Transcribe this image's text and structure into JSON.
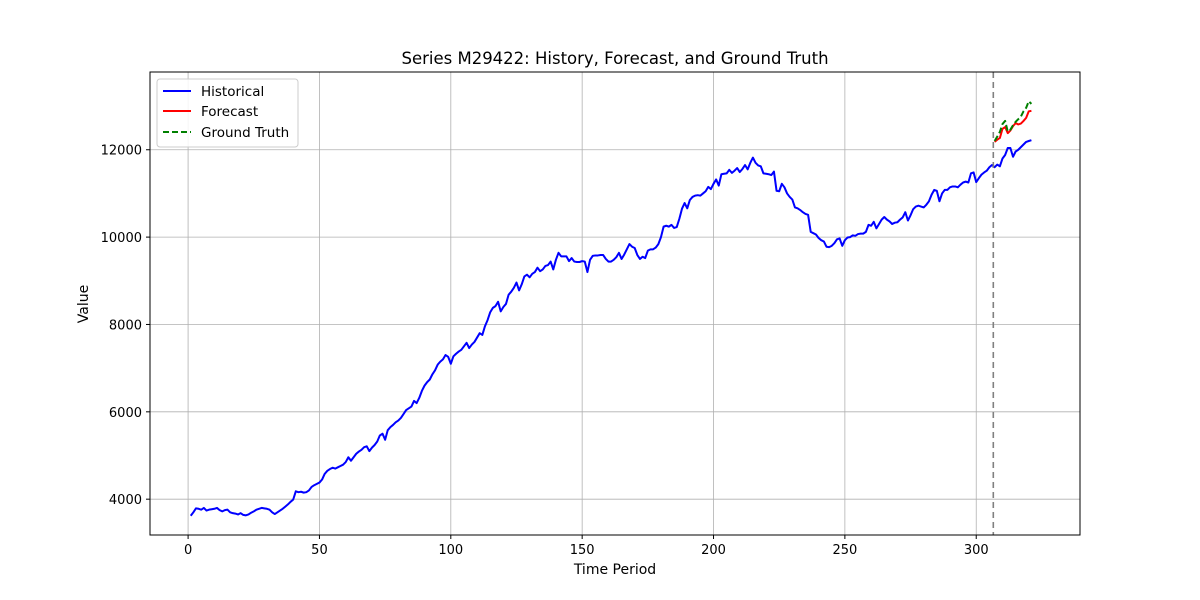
{
  "chart_data": {
    "type": "line",
    "title": "Series M29422: History, Forecast, and Ground Truth",
    "xlabel": "Time Period",
    "ylabel": "Value",
    "xlim": [
      -14.5,
      339.5
    ],
    "ylim": [
      3180,
      13780
    ],
    "xticks": [
      0,
      50,
      100,
      150,
      200,
      250,
      300
    ],
    "yticks": [
      4000,
      6000,
      8000,
      10000,
      12000
    ],
    "grid": true,
    "legend_position": "top-left",
    "forecast_start": 306.5,
    "series": [
      {
        "name": "Historical",
        "color": "#0000ff",
        "style": "solid",
        "x_start": 1,
        "values": [
          3620,
          3700,
          3790,
          3780,
          3760,
          3800,
          3740,
          3760,
          3770,
          3780,
          3800,
          3750,
          3720,
          3750,
          3760,
          3700,
          3680,
          3670,
          3650,
          3680,
          3640,
          3630,
          3650,
          3690,
          3720,
          3760,
          3780,
          3800,
          3790,
          3780,
          3760,
          3700,
          3660,
          3700,
          3740,
          3780,
          3830,
          3880,
          3940,
          3990,
          4180,
          4160,
          4170,
          4150,
          4160,
          4200,
          4280,
          4320,
          4350,
          4380,
          4450,
          4580,
          4650,
          4690,
          4720,
          4700,
          4730,
          4760,
          4790,
          4850,
          4960,
          4880,
          4960,
          5040,
          5090,
          5130,
          5190,
          5210,
          5100,
          5180,
          5240,
          5320,
          5460,
          5500,
          5360,
          5580,
          5650,
          5700,
          5760,
          5800,
          5860,
          5950,
          6040,
          6080,
          6120,
          6250,
          6200,
          6320,
          6480,
          6600,
          6680,
          6740,
          6860,
          6950,
          7080,
          7150,
          7200,
          7300,
          7260,
          7100,
          7270,
          7330,
          7380,
          7420,
          7500,
          7580,
          7460,
          7540,
          7600,
          7700,
          7800,
          7760,
          7960,
          8100,
          8280,
          8380,
          8420,
          8520,
          8300,
          8400,
          8470,
          8680,
          8750,
          8840,
          8960,
          8780,
          8920,
          9100,
          9140,
          9080,
          9160,
          9200,
          9300,
          9220,
          9260,
          9340,
          9360,
          9440,
          9260,
          9480,
          9640,
          9560,
          9560,
          9560,
          9450,
          9520,
          9440,
          9430,
          9430,
          9450,
          9440,
          9200,
          9480,
          9570,
          9580,
          9580,
          9590,
          9590,
          9500,
          9440,
          9440,
          9480,
          9540,
          9640,
          9500,
          9600,
          9720,
          9840,
          9780,
          9750,
          9590,
          9500,
          9550,
          9520,
          9690,
          9720,
          9720,
          9760,
          9840,
          10000,
          10240,
          10260,
          10240,
          10280,
          10210,
          10230,
          10420,
          10650,
          10780,
          10660,
          10850,
          10920,
          10950,
          10960,
          10950,
          11000,
          11050,
          11150,
          11100,
          11220,
          11320,
          11180,
          11440,
          11450,
          11460,
          11540,
          11470,
          11520,
          11580,
          11490,
          11560,
          11650,
          11550,
          11700,
          11820,
          11700,
          11640,
          11620,
          11460,
          11450,
          11440,
          11420,
          11500,
          11060,
          11050,
          11220,
          11140,
          11000,
          10920,
          10860,
          10680,
          10660,
          10620,
          10570,
          10530,
          10510,
          10120,
          10090,
          10060,
          9980,
          9930,
          9900,
          9780,
          9770,
          9800,
          9860,
          9950,
          9970,
          9800,
          9930,
          9990,
          10000,
          10040,
          10030,
          10070,
          10080,
          10080,
          10120,
          10280,
          10260,
          10350,
          10200,
          10300,
          10400,
          10460,
          10400,
          10360,
          10300,
          10330,
          10340,
          10400,
          10450,
          10570,
          10380,
          10500,
          10640,
          10700,
          10720,
          10700,
          10680,
          10740,
          10820,
          10970,
          11080,
          11060,
          10820,
          11000,
          11080,
          11080,
          11140,
          11160,
          11160,
          11140,
          11200,
          11250,
          11270,
          11250,
          11460,
          11480,
          11260,
          11350,
          11430,
          11480,
          11520,
          11600,
          11650,
          11600,
          11660,
          11620,
          11800,
          11880,
          12040,
          12040,
          11840,
          11960,
          12000,
          12060,
          12120,
          12180,
          12200,
          12220
        ]
      },
      {
        "name": "Forecast",
        "color": "#ff0000",
        "style": "solid",
        "x_start": 307,
        "values": [
          12180,
          12230,
          12270,
          12480,
          12520,
          12380,
          12440,
          12540,
          12610,
          12580,
          12600,
          12660,
          12730,
          12880,
          12890
        ]
      },
      {
        "name": "Ground Truth",
        "color": "#008000",
        "style": "dashed",
        "x_start": 307,
        "values": [
          12200,
          12300,
          12410,
          12590,
          12660,
          12420,
          12460,
          12560,
          12640,
          12700,
          12760,
          12880,
          12960,
          13110,
          13050
        ]
      }
    ]
  }
}
